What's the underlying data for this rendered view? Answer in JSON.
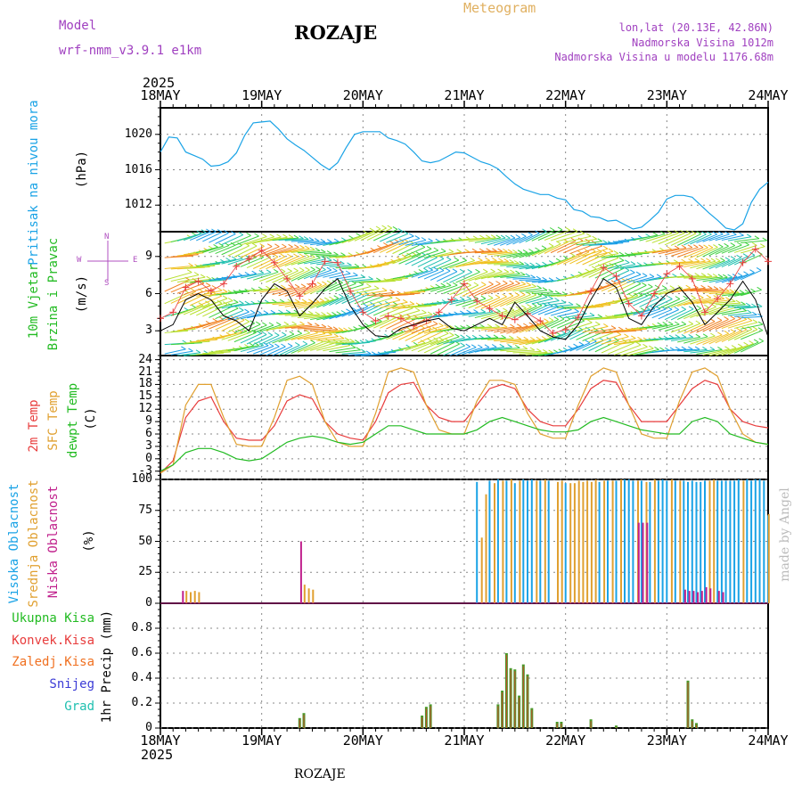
{
  "header": {
    "model_label": "Model",
    "model_name": "wrf-nmm_v3.9.1  e1km",
    "station": "ROZAJE",
    "meteogram": "Meteogram",
    "lonlat": "lon,lat (20.13E, 42.86N)",
    "elevation": "Nadmorska Visina 1012m",
    "model_elevation": "Nadmorska Visina u modelu 1176.68m"
  },
  "footer": {
    "station": "ROZAJE",
    "credit": "made by Angel"
  },
  "time_axis": {
    "year": "2025",
    "ticks": [
      "18MAY",
      "19MAY",
      "20MAY",
      "21MAY",
      "22MAY",
      "23MAY",
      "24MAY"
    ]
  },
  "colors": {
    "pressure": "#1aa3e6",
    "mslp_label": "#1aa3e6",
    "wind_label": "#22bb22",
    "temp2m": "#e83c3c",
    "sfctemp": "#e0a030",
    "dewpt": "#22bb22",
    "cloud_high": "#1aa3e6",
    "cloud_mid": "#e0a030",
    "cloud_low": "#c0208c",
    "precip_total": "#22bb22",
    "precip_conv": "#e83c3c",
    "precip_frozen": "#f07020",
    "snow": "#3b3bd6",
    "hail": "#20c0b0",
    "compass": "#b050c0",
    "header_purple": "#a040c0",
    "header_orange": "#e0b060"
  },
  "panels": {
    "pressure": {
      "label": "Pritisak na nivou mora",
      "unit": "(hPa)",
      "yticks": [
        "1012",
        "1016",
        "1020"
      ]
    },
    "wind": {
      "label1": "10m Vjetar",
      "label2": "Brzina i Pravac",
      "unit": "(m/s)",
      "yticks": [
        "3",
        "6",
        "9"
      ],
      "compass_n": "N",
      "compass_s": "S",
      "compass_w": "W",
      "compass_e": "E"
    },
    "temp": {
      "label1": "2m Temp",
      "label2": "SFC Temp",
      "label3": "dewpt Temp",
      "unit": "(C)",
      "yticks": [
        "-3",
        "0",
        "3",
        "6",
        "9",
        "12",
        "15",
        "18",
        "21",
        "24"
      ]
    },
    "cloud": {
      "label1": "Visoka Oblacnost",
      "label2": "Srednja Oblacnost",
      "label3": "Niska Oblacnost",
      "unit": "(%)",
      "yticks": [
        "0",
        "25",
        "50",
        "75",
        "100"
      ]
    },
    "precip": {
      "legend": [
        "Ukupna Kisa",
        "Konvek.Kisa",
        "Zaledj.Kisa",
        "Snijeg",
        "Grad"
      ],
      "unit": "1hr Precip (mm)",
      "yticks": [
        "0",
        "0.2",
        "0.4",
        "0.6",
        "0.8"
      ]
    }
  },
  "chart_data": [
    {
      "type": "line",
      "name": "pressure",
      "x_hours": [
        0,
        2,
        4,
        6,
        8,
        10,
        12,
        14,
        16,
        18,
        20,
        22,
        24,
        26,
        28,
        30,
        32,
        34,
        36,
        38,
        40,
        42,
        44,
        46,
        48,
        50,
        52,
        54,
        56,
        58,
        60,
        62,
        64,
        66,
        68,
        70,
        72,
        74,
        76,
        78,
        80,
        82,
        84,
        86,
        88,
        90,
        92,
        94,
        96,
        98,
        100,
        102,
        104,
        106,
        108,
        110,
        112,
        114,
        116,
        118,
        120,
        122,
        124,
        126,
        128,
        130,
        132,
        134,
        136,
        138,
        140,
        142,
        144
      ],
      "values": [
        1018,
        1019.7,
        1019.6,
        1018,
        1017.6,
        1017.2,
        1016.4,
        1016.5,
        1016.9,
        1017.9,
        1019.9,
        1021.3,
        1021.4,
        1021.5,
        1020.6,
        1019.5,
        1018.8,
        1018.2,
        1017.4,
        1016.6,
        1016,
        1016.8,
        1018.5,
        1020,
        1020.3,
        1020.3,
        1020.3,
        1019.6,
        1019.3,
        1018.9,
        1018,
        1017,
        1016.8,
        1017,
        1017.5,
        1018,
        1017.9,
        1017.4,
        1016.9,
        1016.6,
        1016.1,
        1015.2,
        1014.4,
        1013.8,
        1013.5,
        1013.2,
        1013.2,
        1012.8,
        1012.6,
        1011.5,
        1011.3,
        1010.7,
        1010.6,
        1010.2,
        1010.3,
        1009.8,
        1009.3,
        1009.5,
        1010.3,
        1011.2,
        1012.7,
        1013.1,
        1013.1,
        1012.9,
        1012,
        1011.1,
        1010.3,
        1009.4,
        1009.2,
        1009.9,
        1012.3,
        1013.8,
        1014.6
      ],
      "ylim": [
        1009,
        1023
      ]
    },
    {
      "type": "line",
      "name": "wind",
      "x_hours": [
        0,
        3,
        6,
        9,
        12,
        15,
        18,
        21,
        24,
        27,
        30,
        33,
        36,
        39,
        42,
        45,
        48,
        51,
        54,
        57,
        60,
        63,
        66,
        69,
        72,
        75,
        78,
        81,
        84,
        87,
        90,
        93,
        96,
        99,
        102,
        105,
        108,
        111,
        114,
        117,
        120,
        123,
        126,
        129,
        132,
        135,
        138,
        141,
        144
      ],
      "values": [
        3,
        3.5,
        5.5,
        6,
        5.5,
        4.2,
        3.8,
        3,
        5.5,
        6.8,
        6.2,
        4.2,
        5.2,
        6.4,
        7.2,
        5,
        3.5,
        2.6,
        2.5,
        3.2,
        3.5,
        3.8,
        4,
        3.2,
        3,
        3.5,
        4,
        3.5,
        5.3,
        4.2,
        3,
        2.5,
        2.3,
        3.5,
        5.5,
        7.2,
        6.5,
        4,
        3.5,
        5,
        6,
        6.5,
        5.3,
        3.5,
        4.5,
        5.5,
        7,
        5.5,
        2.5
      ],
      "gust_values": [
        4,
        4.5,
        6.5,
        7,
        6.2,
        6.8,
        8.2,
        8.8,
        9.5,
        8.5,
        7.2,
        5.8,
        6.8,
        8.6,
        8.5,
        6.2,
        4.5,
        3.8,
        4.2,
        4,
        3.4,
        3.8,
        4.5,
        5.5,
        6.8,
        5.4,
        4.8,
        4.2,
        3.9,
        4.4,
        3.8,
        2.8,
        3.1,
        4.1,
        6.2,
        8.1,
        7.4,
        5.2,
        4.2,
        6,
        7.6,
        8.2,
        7.2,
        4.5,
        5.6,
        6.8,
        8.5,
        9.6,
        8.6
      ],
      "ylim": [
        1,
        11
      ]
    },
    {
      "type": "line",
      "name": "temperature",
      "x_hours": [
        0,
        3,
        6,
        9,
        12,
        15,
        18,
        21,
        24,
        27,
        30,
        33,
        36,
        39,
        42,
        45,
        48,
        51,
        54,
        57,
        60,
        63,
        66,
        69,
        72,
        75,
        78,
        81,
        84,
        87,
        90,
        93,
        96,
        99,
        102,
        105,
        108,
        111,
        114,
        117,
        120,
        123,
        126,
        129,
        132,
        135,
        138,
        141,
        144
      ],
      "series": [
        {
          "name": "2m Temp",
          "values": [
            -3.5,
            -0.5,
            10,
            14,
            15,
            9,
            5,
            4.5,
            4.5,
            8,
            14,
            15.5,
            14.5,
            9,
            6,
            5,
            4.5,
            9,
            16,
            18,
            18.5,
            13,
            10,
            9,
            9,
            13,
            17,
            18,
            17,
            12,
            9,
            8,
            8,
            12,
            17,
            19,
            18.5,
            13,
            9,
            9,
            9,
            13,
            17,
            19,
            18,
            12,
            9,
            8,
            7.5
          ]
        },
        {
          "name": "SFC Temp",
          "values": [
            -3.5,
            -1.5,
            13,
            18,
            18,
            10,
            3.5,
            3,
            3,
            10,
            19,
            20,
            18,
            9,
            4,
            3,
            3,
            11,
            21,
            22,
            21,
            13,
            7,
            6,
            6,
            14,
            19,
            19,
            18,
            11,
            6,
            5,
            5,
            13,
            20,
            22,
            21,
            13,
            6,
            5,
            5,
            14,
            21,
            22,
            20,
            12,
            6,
            4,
            3.5
          ]
        },
        {
          "name": "dewpt Temp",
          "values": [
            -3,
            -1.5,
            1.5,
            2.5,
            2.5,
            1.5,
            0,
            -0.5,
            0,
            2,
            4,
            5,
            5.5,
            5,
            4,
            3.5,
            4,
            6,
            8,
            8,
            7,
            6,
            6,
            6,
            6,
            7,
            9,
            10,
            9,
            8,
            7,
            6.5,
            6.5,
            7,
            9,
            10,
            9,
            8,
            7,
            6.5,
            6,
            6,
            9,
            10,
            9,
            6,
            5,
            4,
            3.5
          ]
        }
      ],
      "ylim": [
        -5,
        25
      ]
    },
    {
      "type": "bar",
      "name": "cloud",
      "series": [
        {
          "name": "Visoka Oblacnost",
          "bars": [
            [
              75,
              98
            ],
            [
              78,
              99
            ],
            [
              80,
              100
            ],
            [
              82,
              99
            ],
            [
              84,
              97
            ],
            [
              86,
              100
            ],
            [
              87,
              99
            ],
            [
              88,
              100
            ],
            [
              90,
              99
            ],
            [
              92,
              99
            ],
            [
              96,
              97
            ],
            [
              104,
              98
            ],
            [
              106,
              99
            ],
            [
              108,
              99
            ],
            [
              110,
              100
            ],
            [
              111,
              100
            ],
            [
              112,
              99
            ],
            [
              114,
              99
            ],
            [
              116,
              98
            ],
            [
              118,
              99
            ],
            [
              119,
              100
            ],
            [
              120,
              99
            ],
            [
              122,
              99
            ],
            [
              124,
              99
            ],
            [
              125,
              98
            ],
            [
              126,
              99
            ],
            [
              127,
              98
            ],
            [
              128,
              98
            ],
            [
              129,
              99
            ],
            [
              132,
              99
            ],
            [
              133,
              99
            ],
            [
              134,
              99
            ],
            [
              135,
              99
            ],
            [
              136,
              99
            ],
            [
              137,
              100
            ],
            [
              139,
              100
            ],
            [
              140,
              99
            ],
            [
              141,
              100
            ],
            [
              142,
              100
            ],
            [
              143,
              99
            ],
            [
              144,
              71
            ]
          ]
        },
        {
          "name": "Srednja Oblacnost",
          "bars": [
            [
              6,
              10
            ],
            [
              7,
              9
            ],
            [
              8,
              10
            ],
            [
              9,
              9
            ],
            [
              34,
              15
            ],
            [
              35,
              12
            ],
            [
              36,
              11
            ],
            [
              76,
              53
            ],
            [
              77,
              88
            ],
            [
              79,
              97
            ],
            [
              81,
              99
            ],
            [
              83,
              100
            ],
            [
              85,
              99
            ],
            [
              89,
              99
            ],
            [
              91,
              100
            ],
            [
              94,
              98
            ],
            [
              95,
              99
            ],
            [
              97,
              97
            ],
            [
              98,
              97
            ],
            [
              99,
              99
            ],
            [
              100,
              98
            ],
            [
              101,
              99
            ],
            [
              102,
              98
            ],
            [
              103,
              100
            ],
            [
              105,
              99
            ],
            [
              107,
              99
            ],
            [
              109,
              100
            ],
            [
              113,
              99
            ],
            [
              115,
              98
            ],
            [
              117,
              100
            ],
            [
              121,
              100
            ],
            [
              123,
              99
            ],
            [
              130,
              99
            ],
            [
              131,
              100
            ],
            [
              138,
              99
            ],
            [
              144,
              72
            ]
          ]
        },
        {
          "name": "Niska Oblacnost",
          "bars": [
            [
              5,
              10
            ],
            [
              33,
              50
            ],
            [
              113,
              65
            ],
            [
              114,
              65
            ],
            [
              115,
              65
            ],
            [
              124,
              11
            ],
            [
              125,
              10
            ],
            [
              126,
              10
            ],
            [
              127,
              9
            ],
            [
              128,
              10
            ],
            [
              129,
              13
            ],
            [
              130,
              12
            ],
            [
              132,
              10
            ],
            [
              133,
              9
            ]
          ]
        }
      ],
      "ylim": [
        0,
        100
      ]
    },
    {
      "type": "bar",
      "name": "precip",
      "series": [
        {
          "name": "Ukupna Kisa",
          "bars": [
            [
              33,
              0.08
            ],
            [
              34,
              0.12
            ],
            [
              62,
              0.1
            ],
            [
              63,
              0.17
            ],
            [
              64,
              0.19
            ],
            [
              80,
              0.19
            ],
            [
              81,
              0.3
            ],
            [
              82,
              0.6
            ],
            [
              83,
              0.48
            ],
            [
              84,
              0.47
            ],
            [
              85,
              0.26
            ],
            [
              86,
              0.51
            ],
            [
              87,
              0.43
            ],
            [
              88,
              0.16
            ],
            [
              94,
              0.05
            ],
            [
              95,
              0.05
            ],
            [
              102,
              0.07
            ],
            [
              108,
              0.02
            ],
            [
              125,
              0.38
            ],
            [
              126,
              0.07
            ],
            [
              127,
              0.04
            ]
          ]
        }
      ],
      "ylim": [
        0,
        1
      ]
    }
  ]
}
